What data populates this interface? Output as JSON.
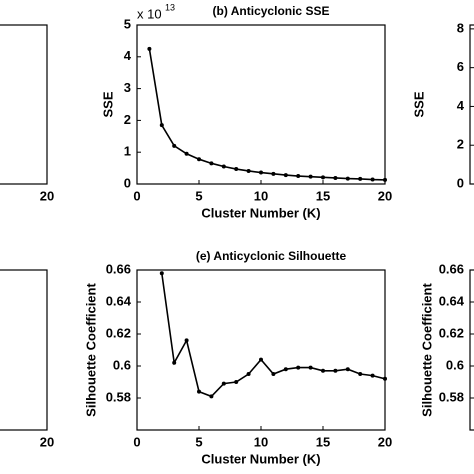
{
  "chart_data": [
    {
      "type": "line",
      "xlim": [
        0,
        20
      ],
      "xticks": [
        20
      ],
      "ylim": [
        0,
        5
      ],
      "yticks": []
    },
    {
      "type": "line",
      "title": "(b) Anticyclonic SSE",
      "scale_label": "x 10",
      "scale_exponent": "13",
      "x_label": "Cluster Number (K)",
      "y_label": "SSE",
      "xlim": [
        0,
        20
      ],
      "xticks": [
        0,
        5,
        10,
        15,
        20
      ],
      "ylim": [
        0,
        5
      ],
      "yticks": [
        0,
        1,
        2,
        3,
        4,
        5
      ],
      "color": "#000000",
      "x": [
        1,
        2,
        3,
        4,
        5,
        6,
        7,
        8,
        9,
        10,
        11,
        12,
        13,
        14,
        15,
        16,
        17,
        18,
        19,
        20
      ],
      "values": [
        4.25,
        1.85,
        1.2,
        0.95,
        0.78,
        0.65,
        0.55,
        0.47,
        0.41,
        0.36,
        0.32,
        0.28,
        0.25,
        0.23,
        0.21,
        0.19,
        0.17,
        0.16,
        0.14,
        0.13
      ]
    },
    {
      "type": "line",
      "y_label": "SSE",
      "xlim": [
        0,
        20
      ],
      "xticks": [],
      "ylim": [
        0,
        8.2
      ],
      "yticks": [
        0,
        2,
        4,
        6,
        8
      ]
    },
    {
      "type": "line",
      "xlim": [
        0,
        20
      ],
      "xticks": [
        20
      ],
      "ylim": [
        0.56,
        0.66
      ],
      "yticks": []
    },
    {
      "type": "line",
      "title": "(e) Anticyclonic Silhouette",
      "x_label": "Cluster Number (K)",
      "y_label": "Silhouette Coefficient",
      "xlim": [
        0,
        20
      ],
      "xticks": [
        0,
        5,
        10,
        15,
        20
      ],
      "ylim": [
        0.56,
        0.66
      ],
      "yticks": [
        0.58,
        0.6,
        0.62,
        0.64,
        0.66
      ],
      "color": "#000000",
      "x": [
        2,
        3,
        4,
        5,
        6,
        7,
        8,
        9,
        10,
        11,
        12,
        13,
        14,
        15,
        16,
        17,
        18,
        19,
        20
      ],
      "values": [
        0.658,
        0.602,
        0.616,
        0.584,
        0.581,
        0.589,
        0.59,
        0.595,
        0.604,
        0.595,
        0.598,
        0.599,
        0.599,
        0.597,
        0.597,
        0.598,
        0.595,
        0.594,
        0.592
      ]
    },
    {
      "type": "line",
      "y_label": "Silhouette Coefficient",
      "xlim": [
        0,
        20
      ],
      "xticks": [],
      "ylim": [
        0.56,
        0.66
      ],
      "yticks": [
        0.58,
        0.6,
        0.62,
        0.64,
        0.66
      ]
    }
  ]
}
